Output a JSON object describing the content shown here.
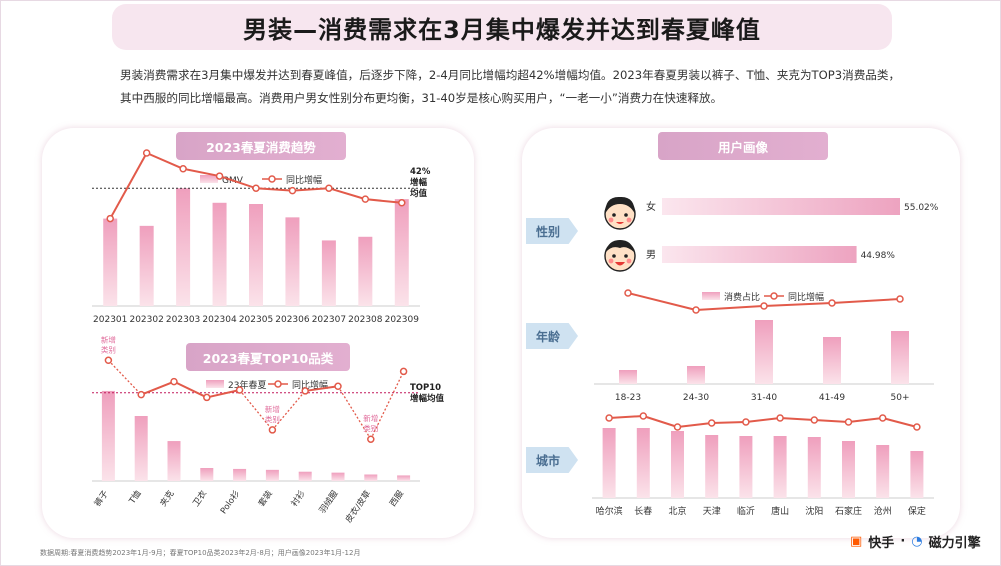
{
  "title": "男装—消费需求在3月集中爆发并达到春夏峰值",
  "summary": "男装消费需求在3月集中爆发并达到春夏峰值，后逐步下降，2-4月同比增幅均超42%增幅均值。2023年春夏男装以裤子、T恤、夹克为TOP3消费品类，其中西服的同比增幅最高。消费用户男女性别分布更均衡，31-40岁是核心购买用户，“一老一小”消费力在快速释放。",
  "left_panel_title": "2023春夏消费趋势",
  "top10_title": "2023春夏TOP10品类",
  "right_panel_title": "用户画像",
  "tags": {
    "gender": "性别",
    "age": "年龄",
    "city": "城市"
  },
  "footer_note": "数据周期:春夏消费趋势2023年1月-9月；春夏TOP10品类2023年2月-8月；用户画像2023年1月-12月",
  "brand": {
    "kuaishou": "快手",
    "sep": "·",
    "cili": "磁力引擎"
  },
  "colors": {
    "bar": "#f1b9cc",
    "line": "#e25a4a",
    "accent": "#d8a4c7"
  },
  "chart_data": [
    {
      "id": "trend",
      "type": "bar",
      "categories": [
        "202301",
        "202302",
        "202303",
        "202304",
        "202305",
        "202306",
        "202307",
        "202308",
        "202309"
      ],
      "series": [
        {
          "name": "GMV",
          "values": [
            72,
            66,
            97,
            85,
            84,
            73,
            54,
            57,
            88
          ]
        },
        {
          "name": "同比增幅",
          "values": [
            72,
            126,
            113,
            107,
            97,
            95,
            97,
            88,
            85
          ]
        }
      ],
      "ylim": [
        0,
        140
      ],
      "reference": {
        "value": 97,
        "label_lines": [
          "42%",
          "增幅",
          "均值"
        ]
      }
    },
    {
      "id": "top10",
      "type": "bar",
      "categories": [
        "裤子",
        "T恤",
        "夹克",
        "卫衣",
        "Polo衫",
        "套装",
        "衬衫",
        "羽绒服",
        "皮衣/皮草",
        "西服"
      ],
      "series": [
        {
          "name": "23年春夏",
          "values": [
            97,
            70,
            43,
            14,
            13,
            12,
            10,
            9,
            7,
            6
          ]
        },
        {
          "name": "同比增幅",
          "values": [
            130,
            93,
            107,
            90,
            98,
            55,
            97,
            102,
            45,
            118
          ]
        }
      ],
      "ylim": [
        0,
        140
      ],
      "dotted_segments": [
        [
          0,
          1
        ],
        [
          4,
          5
        ],
        [
          5,
          6
        ],
        [
          7,
          8
        ],
        [
          8,
          9
        ]
      ],
      "annotations": [
        {
          "index": 0,
          "lines": [
            "新增",
            "类别"
          ]
        },
        {
          "index": 5,
          "lines": [
            "新增",
            "类别"
          ]
        },
        {
          "index": 8,
          "lines": [
            "新增",
            "类别"
          ]
        }
      ],
      "reference": {
        "value": 95,
        "label_lines": [
          "TOP10",
          "增幅均值"
        ]
      }
    },
    {
      "id": "gender",
      "type": "bar",
      "categories": [
        "女",
        "男"
      ],
      "values": [
        55.02,
        44.98
      ],
      "labels": [
        "55.02%",
        "44.98%"
      ]
    },
    {
      "id": "age",
      "type": "bar",
      "categories": [
        "18-23",
        "24-30",
        "31-40",
        "41-49",
        "50+"
      ],
      "series": [
        {
          "name": "消费占比",
          "values": [
            14,
            18,
            64,
            47,
            53
          ]
        },
        {
          "name": "同比增幅",
          "values": [
            91,
            74,
            78,
            81,
            85
          ]
        }
      ],
      "ylim": [
        0,
        100
      ]
    },
    {
      "id": "city",
      "type": "bar",
      "categories": [
        "哈尔滨",
        "长春",
        "北京",
        "天津",
        "临沂",
        "唐山",
        "沈阳",
        "石家庄",
        "沧州",
        "保定"
      ],
      "series": [
        {
          "name": "消费占比",
          "values": [
            70,
            70,
            67,
            63,
            62,
            62,
            61,
            57,
            53,
            47
          ]
        },
        {
          "name": "同比增幅",
          "values": [
            80,
            82,
            71,
            75,
            76,
            80,
            78,
            76,
            80,
            71
          ]
        }
      ],
      "ylim": [
        0,
        100
      ]
    }
  ]
}
